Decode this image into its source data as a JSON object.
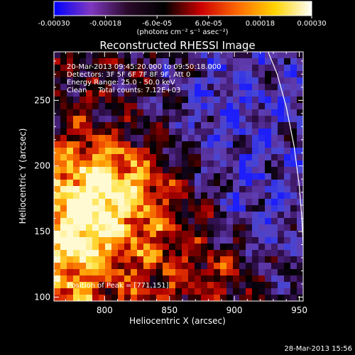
{
  "chart_data": {
    "type": "heatmap",
    "title": "Reconstructed RHESSI Image",
    "xlabel": "Heliocentric X (arcsec)",
    "ylabel": "Heliocentric Y (arcsec)",
    "xlim": [
      761,
      953
    ],
    "ylim": [
      97,
      287
    ],
    "x_ticks": [
      "800",
      "850",
      "900",
      "950"
    ],
    "y_ticks": [
      "100",
      "150",
      "200",
      "250"
    ],
    "colorbar": {
      "range": [
        -0.0003,
        0.0003
      ],
      "tick_labels": [
        "-0.00030",
        "-0.00018",
        "-6.0e-05",
        "6.0e-05",
        "0.00018",
        "0.00030"
      ],
      "label": "(photons cm⁻² s⁻¹ asec⁻²)",
      "colors": [
        "#0000ff",
        "#7f38c0",
        "#2a0a2a",
        "#000000",
        "#cc0000",
        "#ff6a00",
        "#ffd400",
        "#ffffff"
      ]
    },
    "annotations": {
      "time_range": "20-Mar-2013 09:45:20.000 to 09:50:18.000",
      "detectors": "Detectors: 3F 5F 6F 7F 8F 9F, Att 0",
      "energy_range": "Energy Range: 25.0 - 50.0 keV",
      "clean_counts": "Clean     Total counts: 7.12E+03",
      "peak": "Position of Peak = [771,151]"
    },
    "limb_curve": [
      [
        926,
        287
      ],
      [
        933,
        270
      ],
      [
        940,
        245
      ],
      [
        946,
        215
      ],
      [
        950,
        185
      ],
      [
        952,
        160
      ],
      [
        953,
        140
      ]
    ],
    "approx_intensity_regions": [
      {
        "region": "lower-left X 761-830, Y 97-210",
        "level": "high positive (yellow/white)"
      },
      {
        "region": "center-left X 800-870, Y 120-200",
        "level": "moderate positive (red/orange)"
      },
      {
        "region": "upper and right X 830-953, Y 180-287",
        "level": "negative (purple/blue)"
      }
    ]
  },
  "footer": {
    "date": "28-Mar-2013 15:56"
  }
}
